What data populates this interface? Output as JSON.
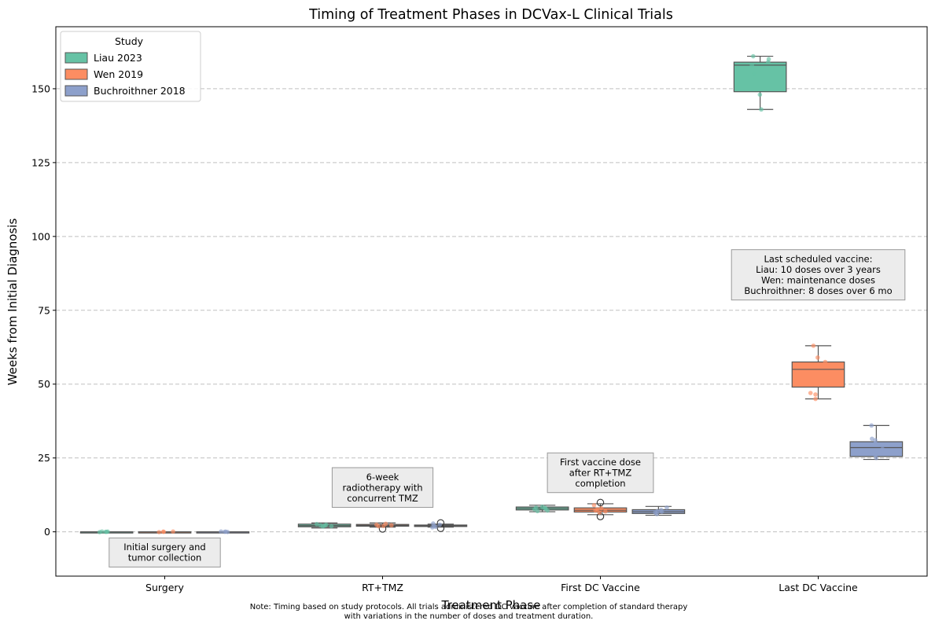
{
  "chart_data": {
    "type": "box",
    "title": "Timing of Treatment Phases in DCVax-L Clinical Trials",
    "xlabel": "Treatment Phase",
    "ylabel": "Weeks from Initial Diagnosis",
    "categories": [
      "Surgery",
      "RT+TMZ",
      "First DC Vaccine",
      "Last DC Vaccine"
    ],
    "ylim": [
      -15,
      171
    ],
    "yticks": [
      0,
      25,
      50,
      75,
      100,
      125,
      150
    ],
    "grid": "horizontal dashed",
    "legend": {
      "title": "Study",
      "placement": "top-left",
      "entries": [
        "Liau 2023",
        "Wen 2019",
        "Buchroithner 2018"
      ]
    },
    "series": [
      {
        "name": "Liau 2023",
        "color": "#66c2a5",
        "boxes": [
          {
            "whisker_low": 0,
            "q1": 0,
            "median": 0,
            "q3": 0,
            "whisker_high": 0,
            "outliers": []
          },
          {
            "whisker_low": 1.3,
            "q1": 1.7,
            "median": 2.1,
            "q3": 2.6,
            "whisker_high": 3.0,
            "outliers": []
          },
          {
            "whisker_low": 6.8,
            "q1": 7.4,
            "median": 7.9,
            "q3": 8.4,
            "whisker_high": 9.0,
            "outliers": []
          },
          {
            "whisker_low": 143,
            "q1": 149,
            "median": 158,
            "q3": 159,
            "whisker_high": 161,
            "outliers": []
          }
        ],
        "points": [
          [
            0,
            0.05,
            -0.1,
            0.1,
            0.0
          ],
          [
            2.1,
            2.6,
            1.9,
            2.4,
            1.8,
            2.2
          ],
          [
            7.2,
            8.1,
            7.6,
            8.5,
            7.0,
            7.8,
            8.2
          ],
          [
            143,
            148,
            155,
            158,
            159,
            160,
            161
          ]
        ]
      },
      {
        "name": "Wen 2019",
        "color": "#fc8d62",
        "boxes": [
          {
            "whisker_low": 0,
            "q1": 0,
            "median": 0,
            "q3": 0,
            "whisker_high": 0,
            "outliers": []
          },
          {
            "whisker_low": 1.6,
            "q1": 1.9,
            "median": 2.2,
            "q3": 2.5,
            "whisker_high": 3.0,
            "outliers": [
              1.0
            ]
          },
          {
            "whisker_low": 5.8,
            "q1": 6.7,
            "median": 7.3,
            "q3": 8.1,
            "whisker_high": 9.5,
            "outliers": [
              5.2,
              9.9
            ]
          },
          {
            "whisker_low": 45,
            "q1": 49,
            "median": 55,
            "q3": 57.5,
            "whisker_high": 63,
            "outliers": []
          }
        ],
        "points": [
          [
            0,
            0.1,
            -0.1,
            0.05
          ],
          [
            2.0,
            2.7,
            1.9,
            2.4,
            2.2
          ],
          [
            6.5,
            7.2,
            8.0,
            7.6,
            9.0,
            6.9
          ],
          [
            45,
            46.5,
            47,
            54,
            56,
            57.5,
            59,
            63
          ]
        ]
      },
      {
        "name": "Buchroithner 2018",
        "color": "#8da0cb",
        "boxes": [
          {
            "whisker_low": 0,
            "q1": 0,
            "median": 0,
            "q3": 0,
            "whisker_high": 0,
            "outliers": []
          },
          {
            "whisker_low": 1.6,
            "q1": 1.8,
            "median": 2.0,
            "q3": 2.3,
            "whisker_high": 2.6,
            "outliers": [
              1.2,
              3.0
            ]
          },
          {
            "whisker_low": 5.6,
            "q1": 6.2,
            "median": 6.8,
            "q3": 7.5,
            "whisker_high": 8.6,
            "outliers": []
          },
          {
            "whisker_low": 24.5,
            "q1": 25.5,
            "median": 28.5,
            "q3": 30.5,
            "whisker_high": 36,
            "outliers": []
          }
        ],
        "points": [
          [
            0,
            0.1,
            -0.05,
            0.05
          ],
          [
            2.0,
            1.7,
            2.4,
            2.8,
            1.5
          ],
          [
            6.0,
            6.8,
            7.4,
            8.2,
            6.5,
            7.0
          ],
          [
            25,
            26,
            28,
            30,
            31,
            31.5,
            36
          ]
        ]
      }
    ],
    "annotations": [
      {
        "category_index": 0,
        "y": -7,
        "text": [
          "Initial surgery and",
          "tumor collection"
        ]
      },
      {
        "category_index": 1,
        "y": 15,
        "text": [
          "6-week",
          "radiotherapy with",
          "concurrent TMZ"
        ]
      },
      {
        "category_index": 2,
        "y": 20,
        "text": [
          "First vaccine dose",
          "after RT+TMZ",
          "completion"
        ]
      },
      {
        "category_index": 3,
        "y": 87,
        "text": [
          "Last scheduled vaccine:",
          "Liau: 10 doses over 3 years",
          "Wen: maintenance doses",
          "Buchroithner: 8 doses over 6 mo"
        ]
      }
    ],
    "footnote": [
      "Note: Timing based on study protocols. All trials administered DC vaccine after completion of standard therapy",
      "with variations in the number of doses and treatment duration."
    ]
  }
}
